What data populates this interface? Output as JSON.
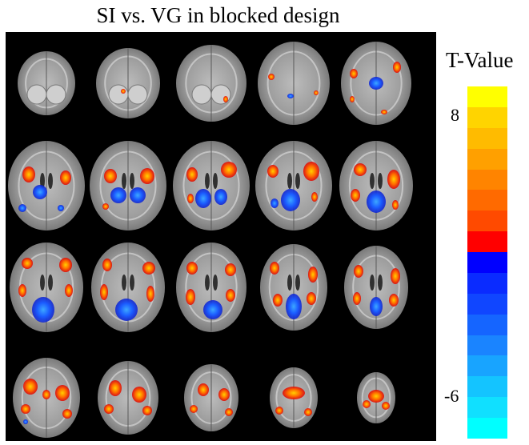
{
  "figure": {
    "title": "SI vs. VG in blocked design"
  },
  "colorbar": {
    "title": "T-Value",
    "tick_max": "8",
    "tick_min": "-6",
    "colors": [
      "#ffff00",
      "#ffd400",
      "#ffbb00",
      "#ffa000",
      "#ff8400",
      "#ff6a00",
      "#ff4a00",
      "#ff0000",
      "#0000ff",
      "#0a2bff",
      "#1046ff",
      "#1565ff",
      "#1a84ff",
      "#18a4ff",
      "#14c4ff",
      "#10e0ff",
      "#00ffff"
    ]
  },
  "brain_grid": {
    "rows": 4,
    "cols": 5,
    "background": "#000000",
    "slice_view": "axial"
  }
}
